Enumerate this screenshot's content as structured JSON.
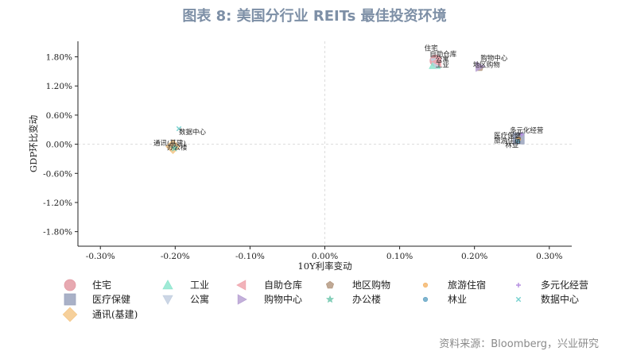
{
  "title": "图表 8: 美国分行业 REITs 最佳投资环境",
  "source": "资料来源：Bloomberg，兴业研究",
  "chart_data": {
    "type": "scatter",
    "xlabel": "10Y利率变动",
    "ylabel": "GDP环比变动",
    "xlim": [
      -0.0033,
      0.0033
    ],
    "ylim": [
      -0.021,
      0.0212
    ],
    "x_ticks": [
      -0.003,
      -0.002,
      -0.001,
      0.0,
      0.001,
      0.002,
      0.003
    ],
    "x_tick_labels": [
      "-0.30%",
      "-0.20%",
      "-0.10%",
      "0.00%",
      "0.10%",
      "0.20%",
      "0.30%"
    ],
    "y_ticks": [
      0.018,
      0.012,
      0.006,
      0.0,
      -0.006,
      -0.012,
      -0.018
    ],
    "y_tick_labels": [
      "1.80%",
      "1.20%",
      "0.60%",
      "0.00%",
      "-0.60%",
      "-1.20%",
      "-1.80%"
    ],
    "reference_lines": [
      {
        "axis": "x",
        "value": 0
      },
      {
        "axis": "y",
        "value": 0
      }
    ],
    "legend_position": "bottom",
    "series": [
      {
        "name": "住宅",
        "marker": "circle",
        "color": "#e39aa3",
        "x": 0.00148,
        "y": 0.0172
      },
      {
        "name": "工业",
        "marker": "triangle-up",
        "color": "#8fe6cf",
        "x": 0.00147,
        "y": 0.0165
      },
      {
        "name": "自助仓库",
        "marker": "triangle-left",
        "color": "#f0a6ae",
        "x": 0.0015,
        "y": 0.017
      },
      {
        "name": "地区购物",
        "marker": "pentagon",
        "color": "#b59a83",
        "x": 0.00207,
        "y": 0.0158
      },
      {
        "name": "旅游住宿",
        "marker": "circle-small",
        "color": "#f5b870",
        "x": 0.00259,
        "y": 0.001
      },
      {
        "name": "多元化经营",
        "marker": "plus",
        "color": "#b58fe0",
        "x": 0.00263,
        "y": 0.002
      },
      {
        "name": "医疗保健",
        "marker": "square",
        "color": "#9aa3bd",
        "x": 0.00259,
        "y": 0.0012
      },
      {
        "name": "公寓",
        "marker": "triangle-down",
        "color": "#c3cfe0",
        "x": 0.00149,
        "y": 0.0167
      },
      {
        "name": "购物中心",
        "marker": "triangle-right",
        "color": "#b8a2d4",
        "x": 0.00207,
        "y": 0.016
      },
      {
        "name": "办公楼",
        "marker": "star",
        "color": "#74c9b0",
        "x": -0.00201,
        "y": -0.0008
      },
      {
        "name": "林业",
        "marker": "circle-small",
        "color": "#6aa8c7",
        "x": 0.00258,
        "y": 0.0006
      },
      {
        "name": "数据中心",
        "marker": "x",
        "color": "#76d1cf",
        "x": -0.00195,
        "y": 0.0032
      },
      {
        "name": "通讯(基建)",
        "marker": "diamond",
        "color": "#f5c889",
        "x": -0.00203,
        "y": -0.0005
      }
    ],
    "point_labels": [
      {
        "text": "住宅",
        "x": 0.00133,
        "y": 0.0193
      },
      {
        "text": "自助仓库",
        "x": 0.0014,
        "y": 0.0181
      },
      {
        "text": "公寓",
        "x": 0.00148,
        "y": 0.017
      },
      {
        "text": "工业",
        "x": 0.00148,
        "y": 0.0159
      },
      {
        "text": "购物中心",
        "x": 0.00208,
        "y": 0.0173
      },
      {
        "text": "地区购物",
        "x": 0.00198,
        "y": 0.0159
      },
      {
        "text": "多元化经营",
        "x": 0.00247,
        "y": 0.0024
      },
      {
        "text": "医疗保健",
        "x": 0.00226,
        "y": 0.0013
      },
      {
        "text": "旅游住宿",
        "x": 0.00226,
        "y": 0.0003
      },
      {
        "text": "林业",
        "x": 0.00241,
        "y": -0.0006
      },
      {
        "text": "数据中心",
        "x": -0.00195,
        "y": 0.0021
      },
      {
        "text": "通讯(基建)",
        "x": -0.00229,
        "y": -0.0002
      },
      {
        "text": "办公楼",
        "x": -0.00211,
        "y": -0.0011
      }
    ],
    "legend_order": [
      "住宅",
      "工业",
      "自助仓库",
      "地区购物",
      "旅游住宿",
      "多元化经营",
      "医疗保健",
      "公寓",
      "购物中心",
      "办公楼",
      "林业",
      "数据中心",
      "通讯(基建)"
    ]
  }
}
